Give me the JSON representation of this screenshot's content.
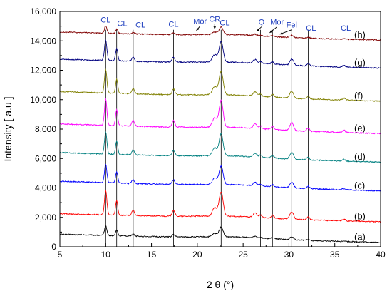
{
  "chart_data": {
    "type": "line",
    "xlabel": "2 θ (°)",
    "ylabel": "Intensity [ a.u ]",
    "xlim": [
      5,
      40
    ],
    "ylim": [
      0,
      16000
    ],
    "x_ticks": [
      "5",
      "10",
      "15",
      "20",
      "25",
      "30",
      "35",
      "40"
    ],
    "y_ticks": [
      "0",
      "2000",
      "4000",
      "6000",
      "8000",
      "10000",
      "12000",
      "14000",
      "16000"
    ],
    "grid": false,
    "legend": "none",
    "reference_lines_2theta": [
      10.0,
      11.2,
      13.0,
      17.4,
      22.6,
      26.9,
      28.2,
      30.3,
      32.1,
      36.0
    ],
    "peaks": [
      {
        "x": 10.0,
        "h": 1.0,
        "w": 0.13
      },
      {
        "x": 11.2,
        "h": 0.6,
        "w": 0.12
      },
      {
        "x": 13.0,
        "h": 0.22,
        "w": 0.14
      },
      {
        "x": 17.4,
        "h": 0.25,
        "w": 0.15
      },
      {
        "x": 21.9,
        "h": 0.35,
        "w": 0.25
      },
      {
        "x": 22.6,
        "h": 1.0,
        "w": 0.22
      },
      {
        "x": 26.3,
        "h": 0.18,
        "w": 0.2
      },
      {
        "x": 26.9,
        "h": 0.1,
        "w": 0.15
      },
      {
        "x": 28.2,
        "h": 0.12,
        "w": 0.15
      },
      {
        "x": 30.3,
        "h": 0.3,
        "w": 0.2
      },
      {
        "x": 32.1,
        "h": 0.12,
        "w": 0.15
      },
      {
        "x": 36.0,
        "h": 0.08,
        "w": 0.15
      }
    ],
    "series": [
      {
        "name": "(a)",
        "color": "#000000",
        "baseline_start": 850,
        "baseline_end": 300,
        "peak_scale": 650
      },
      {
        "name": "(b)",
        "color": "#ff0000",
        "baseline_start": 2250,
        "baseline_end": 1700,
        "peak_scale": 1650
      },
      {
        "name": "(c)",
        "color": "#0000ff",
        "baseline_start": 4450,
        "baseline_end": 3800,
        "peak_scale": 1250
      },
      {
        "name": "(d)",
        "color": "#008080",
        "baseline_start": 6400,
        "baseline_end": 5750,
        "peak_scale": 1500
      },
      {
        "name": "(e)",
        "color": "#ff00ff",
        "baseline_start": 8350,
        "baseline_end": 7700,
        "peak_scale": 1800
      },
      {
        "name": "(f)",
        "color": "#808000",
        "baseline_start": 10550,
        "baseline_end": 9900,
        "peak_scale": 1600
      },
      {
        "name": "(g)",
        "color": "#000080",
        "baseline_start": 12750,
        "baseline_end": 12150,
        "peak_scale": 1400
      },
      {
        "name": "(h)",
        "color": "#800000",
        "baseline_start": 14600,
        "baseline_end": 14050,
        "peak_scale": 500
      }
    ],
    "annotations": [
      {
        "text": "CL",
        "x": 10.0,
        "y": 15250,
        "arrow": false
      },
      {
        "text": "CL",
        "x": 11.8,
        "y": 15000,
        "arrow": false
      },
      {
        "text": "CL",
        "x": 13.8,
        "y": 14900,
        "arrow": false
      },
      {
        "text": "CL",
        "x": 17.4,
        "y": 14950,
        "arrow": false
      },
      {
        "text": "Mor",
        "x": 20.3,
        "y": 15150,
        "arrow": true,
        "ax": 19.9,
        "ay": 14700
      },
      {
        "text": "CR",
        "x": 21.9,
        "y": 15300,
        "arrow": true,
        "ax": 21.9,
        "ay": 14800
      },
      {
        "text": "CL",
        "x": 23.0,
        "y": 15050,
        "arrow": false
      },
      {
        "text": "Q",
        "x": 27.0,
        "y": 15100,
        "arrow": true,
        "ax": 26.5,
        "ay": 14650
      },
      {
        "text": "Mor",
        "x": 28.7,
        "y": 15100,
        "arrow": true,
        "ax": 27.9,
        "ay": 14550
      },
      {
        "text": "Fel",
        "x": 30.3,
        "y": 14900,
        "arrow": true,
        "ax": 29.0,
        "ay": 14450
      },
      {
        "text": "CL",
        "x": 32.4,
        "y": 14700,
        "arrow": false
      },
      {
        "text": "CL",
        "x": 36.2,
        "y": 14700,
        "arrow": false
      }
    ],
    "annotation_color": "#1f3fbf"
  }
}
